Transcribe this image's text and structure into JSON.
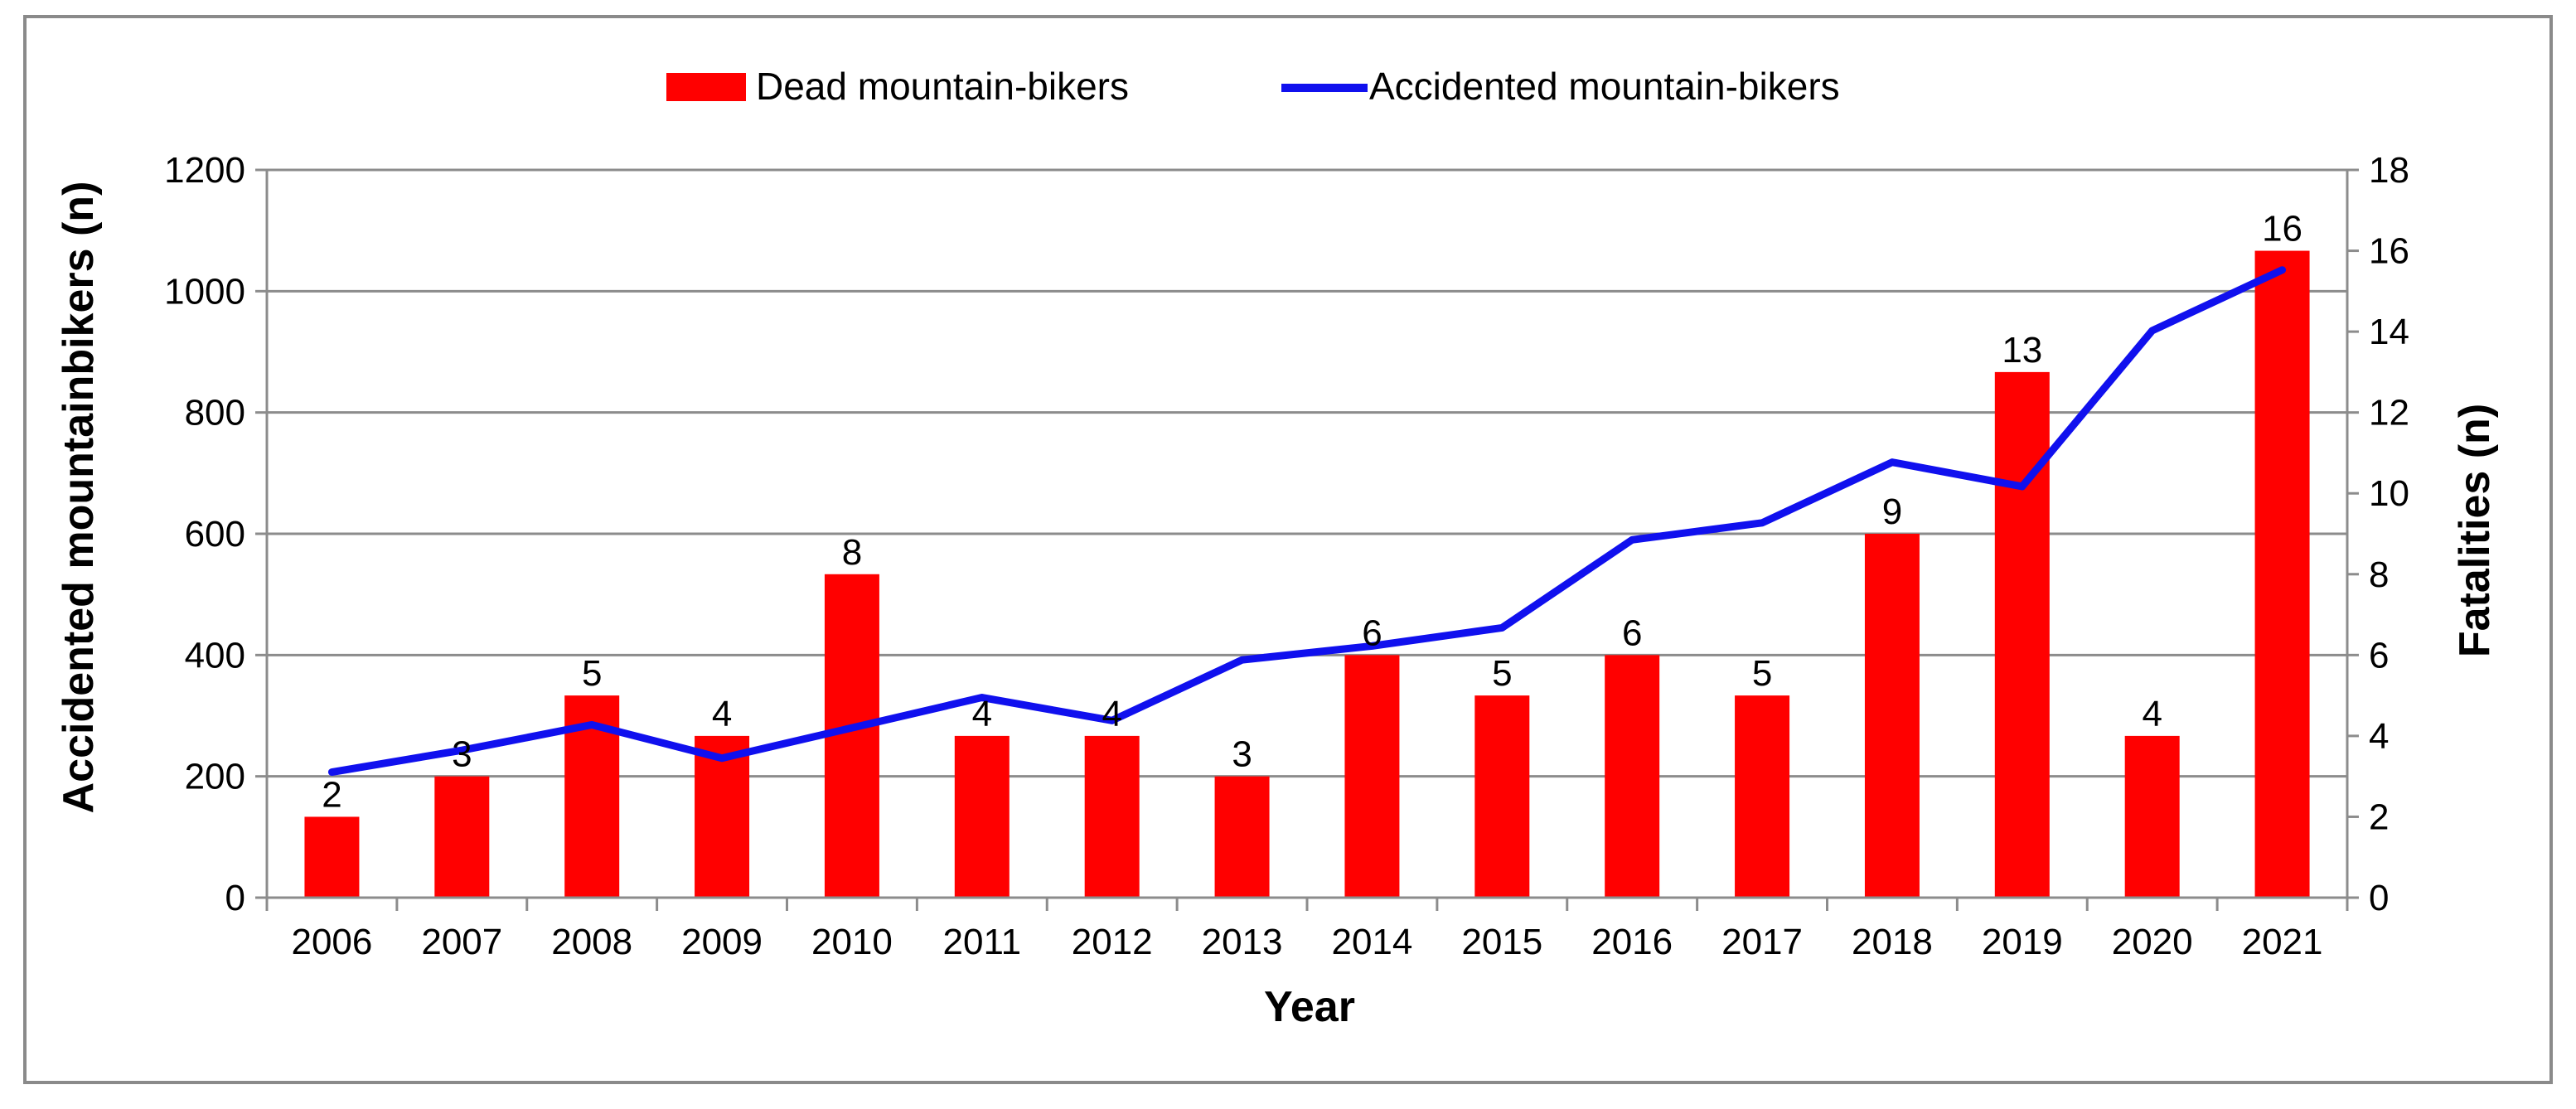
{
  "chart_data": {
    "type": "bar+line",
    "title": "",
    "categories": [
      "2006",
      "2007",
      "2008",
      "2009",
      "2010",
      "2011",
      "2012",
      "2013",
      "2014",
      "2015",
      "2016",
      "2017",
      "2018",
      "2019",
      "2020",
      "2021"
    ],
    "xlabel": "Year",
    "ylabel_left": "Accidented mountainbikers (n)",
    "ylabel_right": "Fatalities (n)",
    "ylim_left": [
      0,
      1200
    ],
    "yticks_left": [
      "0",
      "200",
      "400",
      "600",
      "800",
      "1000",
      "1200"
    ],
    "ylim_right": [
      0,
      18
    ],
    "yticks_right": [
      "0",
      "2",
      "4",
      "6",
      "8",
      "10",
      "12",
      "14",
      "16",
      "18"
    ],
    "grid": "horizontal",
    "legend_position": "top-center",
    "series": [
      {
        "name": "Dead mountain-bikers",
        "kind": "bar",
        "axis": "right",
        "color": "#ff0000",
        "values": [
          2,
          3,
          5,
          4,
          8,
          4,
          4,
          3,
          6,
          5,
          6,
          5,
          9,
          13,
          4,
          16
        ],
        "labels": [
          "2",
          "3",
          "5",
          "4",
          "8",
          "4",
          "4",
          "3",
          "6",
          "5",
          "6",
          "5",
          "9",
          "13",
          "4",
          "16"
        ]
      },
      {
        "name": "Accidented mountain-bikers",
        "kind": "line",
        "axis": "left",
        "color": "#1010ee",
        "values": [
          207,
          243,
          285,
          230,
          280,
          330,
          292,
          392,
          415,
          445,
          590,
          618,
          718,
          678,
          935,
          1035
        ]
      }
    ]
  }
}
